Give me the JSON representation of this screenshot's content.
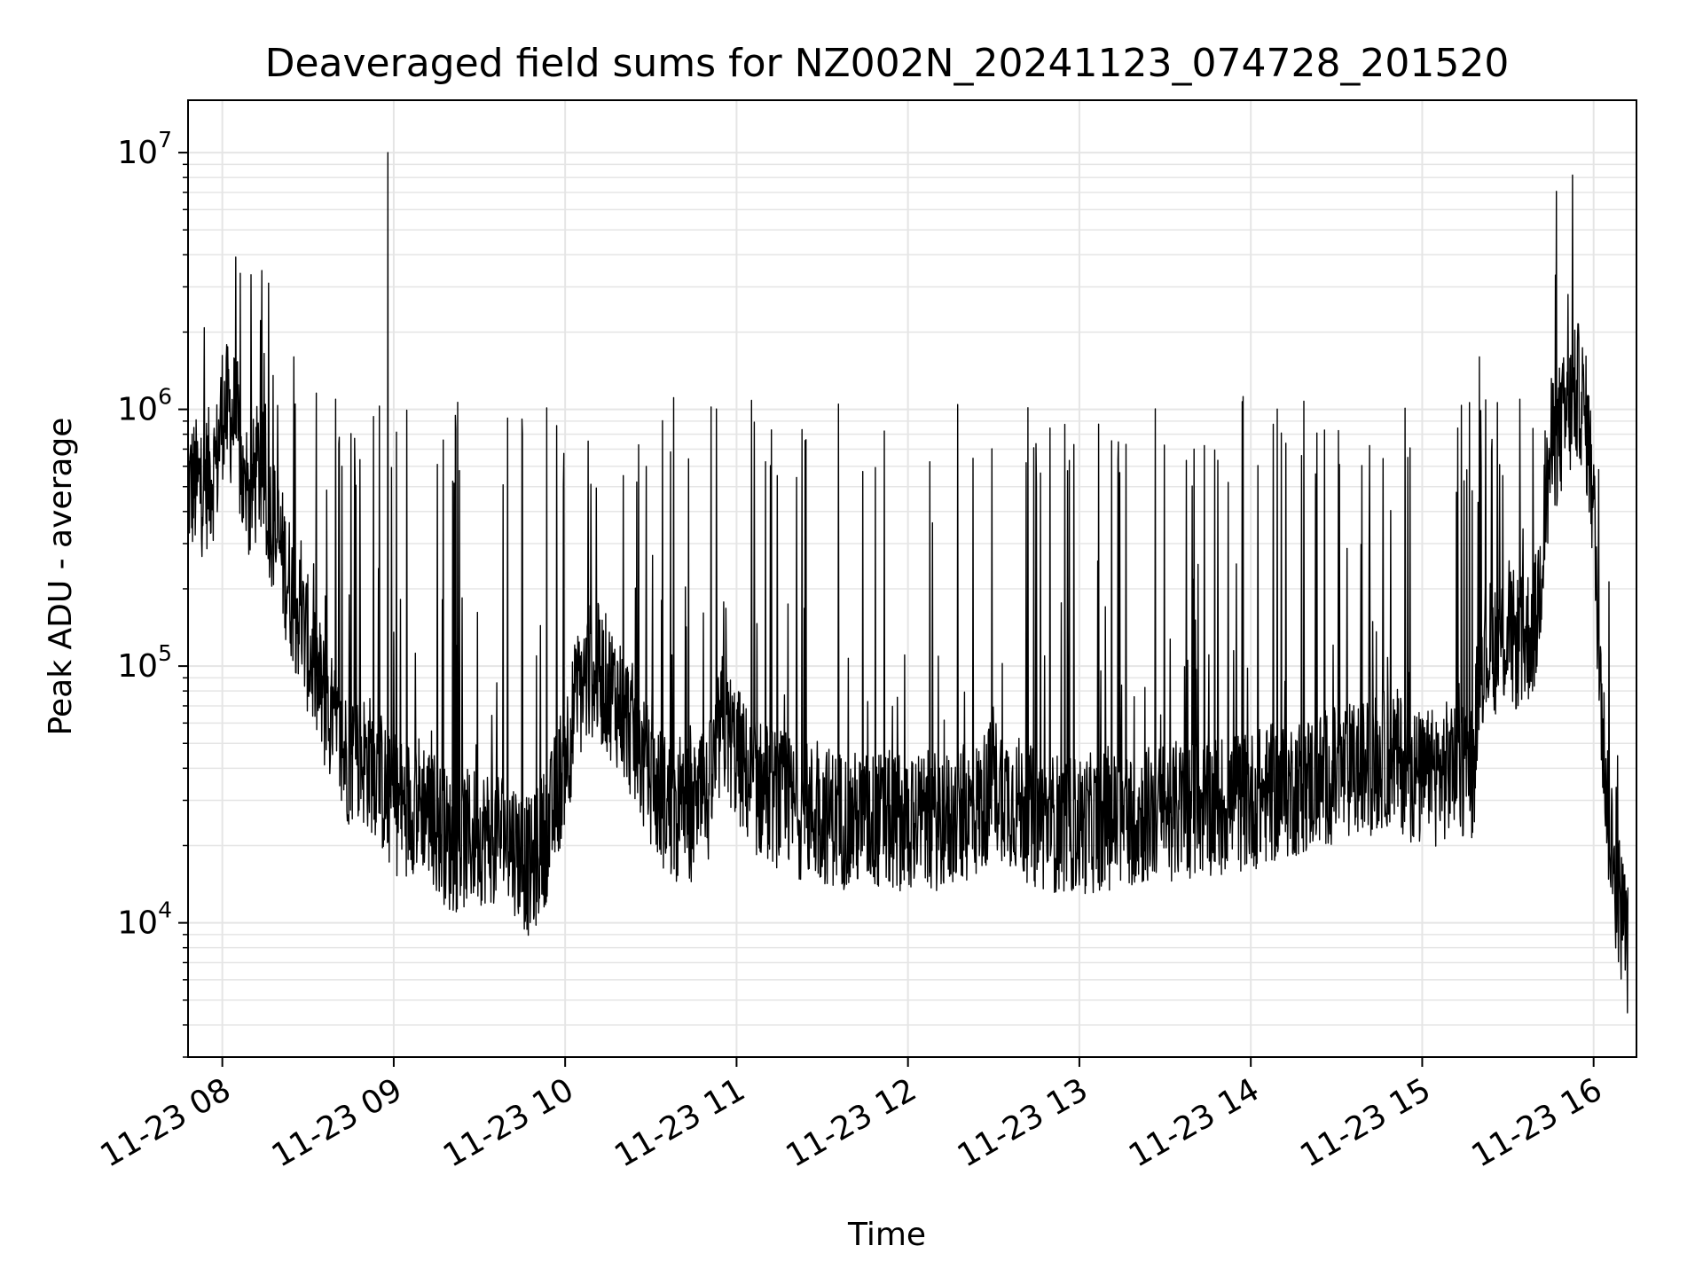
{
  "chart_data": {
    "type": "line",
    "title": "Deaveraged field sums for NZ002N_20241123_074728_201520",
    "xlabel": "Time",
    "ylabel": "Peak ADU - average",
    "yscale": "log",
    "ylim": [
      3000,
      16000000
    ],
    "xlim": [
      "2024-11-23 07:48",
      "2024-11-23 16:15"
    ],
    "x_ticks": [
      {
        "t": "2024-11-23 08:00",
        "label": "11-23 08"
      },
      {
        "t": "2024-11-23 09:00",
        "label": "11-23 09"
      },
      {
        "t": "2024-11-23 10:00",
        "label": "11-23 10"
      },
      {
        "t": "2024-11-23 11:00",
        "label": "11-23 11"
      },
      {
        "t": "2024-11-23 12:00",
        "label": "11-23 12"
      },
      {
        "t": "2024-11-23 13:00",
        "label": "11-23 13"
      },
      {
        "t": "2024-11-23 14:00",
        "label": "11-23 14"
      },
      {
        "t": "2024-11-23 15:00",
        "label": "11-23 15"
      },
      {
        "t": "2024-11-23 16:00",
        "label": "11-23 16"
      }
    ],
    "y_ticks": [
      {
        "value": 10000,
        "base": "10",
        "exp": "4"
      },
      {
        "value": 100000,
        "base": "10",
        "exp": "5"
      },
      {
        "value": 1000000,
        "base": "10",
        "exp": "6"
      },
      {
        "value": 10000000,
        "base": "10",
        "exp": "7"
      }
    ],
    "grid": true,
    "line_color": "#000000",
    "grid_color": "#e5e5e5",
    "series": [
      {
        "x": [
          "2024-11-23 07:48",
          "2024-11-23 07:53",
          "2024-11-23 07:58",
          "2024-11-23 08:00",
          "2024-11-23 08:05",
          "2024-11-23 08:08",
          "2024-11-23 08:13",
          "2024-11-23 08:18",
          "2024-11-23 08:24",
          "2024-11-23 08:30",
          "2024-11-23 08:36",
          "2024-11-23 08:42",
          "2024-11-23 08:48",
          "2024-11-23 08:54",
          "2024-11-23 08:58",
          "2024-11-23 09:02",
          "2024-11-23 09:10",
          "2024-11-23 09:20",
          "2024-11-23 09:30",
          "2024-11-23 09:40",
          "2024-11-23 09:48",
          "2024-11-23 09:55",
          "2024-11-23 10:05",
          "2024-11-23 10:10",
          "2024-11-23 10:20",
          "2024-11-23 10:30",
          "2024-11-23 10:40",
          "2024-11-23 10:50",
          "2024-11-23 10:55",
          "2024-11-23 11:05",
          "2024-11-23 11:20",
          "2024-11-23 11:40",
          "2024-11-23 12:00",
          "2024-11-23 12:15",
          "2024-11-23 12:25",
          "2024-11-23 12:30",
          "2024-11-23 12:45",
          "2024-11-23 13:00",
          "2024-11-23 13:20",
          "2024-11-23 13:40",
          "2024-11-23 14:00",
          "2024-11-23 14:20",
          "2024-11-23 14:40",
          "2024-11-23 14:50",
          "2024-11-23 15:00",
          "2024-11-23 15:10",
          "2024-11-23 15:18",
          "2024-11-23 15:20",
          "2024-11-23 15:30",
          "2024-11-23 15:35",
          "2024-11-23 15:40",
          "2024-11-23 15:45",
          "2024-11-23 15:50",
          "2024-11-23 15:55",
          "2024-11-23 15:58",
          "2024-11-23 16:00",
          "2024-11-23 16:03",
          "2024-11-23 16:06",
          "2024-11-23 16:09",
          "2024-11-23 16:12"
        ],
        "y": [
          500000,
          500000,
          600000,
          1000000,
          900000,
          400000,
          600000,
          350000,
          200000,
          120000,
          70000,
          45000,
          45000,
          40000,
          30000,
          28000,
          30000,
          20000,
          22000,
          22000,
          16000,
          25000,
          80000,
          100000,
          70000,
          35000,
          25000,
          30000,
          60000,
          35000,
          28000,
          25000,
          25000,
          25000,
          28000,
          35000,
          25000,
          24000,
          26000,
          28000,
          30000,
          35000,
          40000,
          45000,
          35000,
          40000,
          40000,
          110000,
          130000,
          120000,
          150000,
          700000,
          900000,
          1200000,
          800000,
          400000,
          60000,
          20000,
          12000,
          8000
        ]
      }
    ],
    "spikes": [
      {
        "x": "2024-11-23 08:58",
        "y": 10000000
      },
      {
        "x": "2024-11-23 15:51",
        "y": 2800000
      },
      {
        "x": "2024-11-23 08:25",
        "y": 1600000
      },
      {
        "x": "2024-11-23 15:20",
        "y": 1600000
      }
    ]
  }
}
